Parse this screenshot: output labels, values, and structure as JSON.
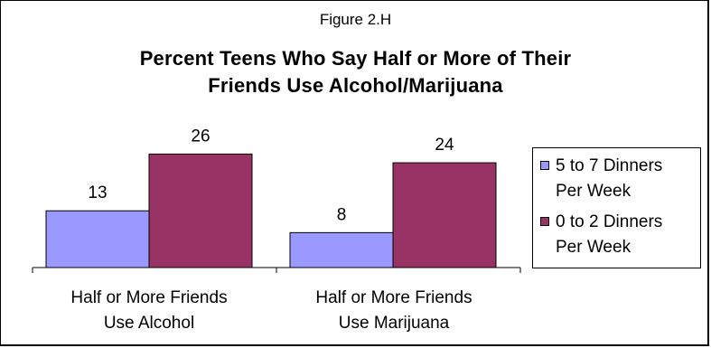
{
  "figure_label": "Figure 2.H",
  "chart_data": {
    "type": "bar",
    "title": "Percent Teens Who Say Half or More of Their Friends Use Alcohol/Marijuana",
    "title_lines": [
      "Percent Teens Who Say Half or More of Their",
      "Friends Use Alcohol/Marijuana"
    ],
    "categories": [
      "Half or More Friends Use Alcohol",
      "Half or More Friends Use Marijuana"
    ],
    "category_lines": [
      [
        "Half or More Friends",
        "Use Alcohol"
      ],
      [
        "Half or More Friends",
        "Use Marijuana"
      ]
    ],
    "series": [
      {
        "name": "5 to 7 Dinners Per Week",
        "name_lines": [
          "5 to 7 Dinners",
          "Per Week"
        ],
        "values": [
          13,
          8
        ],
        "color": "#9999ff"
      },
      {
        "name": "0 to 2 Dinners Per Week",
        "name_lines": [
          "0 to 2 Dinners",
          "Per Week"
        ],
        "values": [
          26,
          24
        ],
        "color": "#993366"
      }
    ],
    "xlabel": "",
    "ylabel": "",
    "ylim": [
      0,
      30
    ],
    "grid": false,
    "data_labels": true,
    "legend_position": "right"
  }
}
